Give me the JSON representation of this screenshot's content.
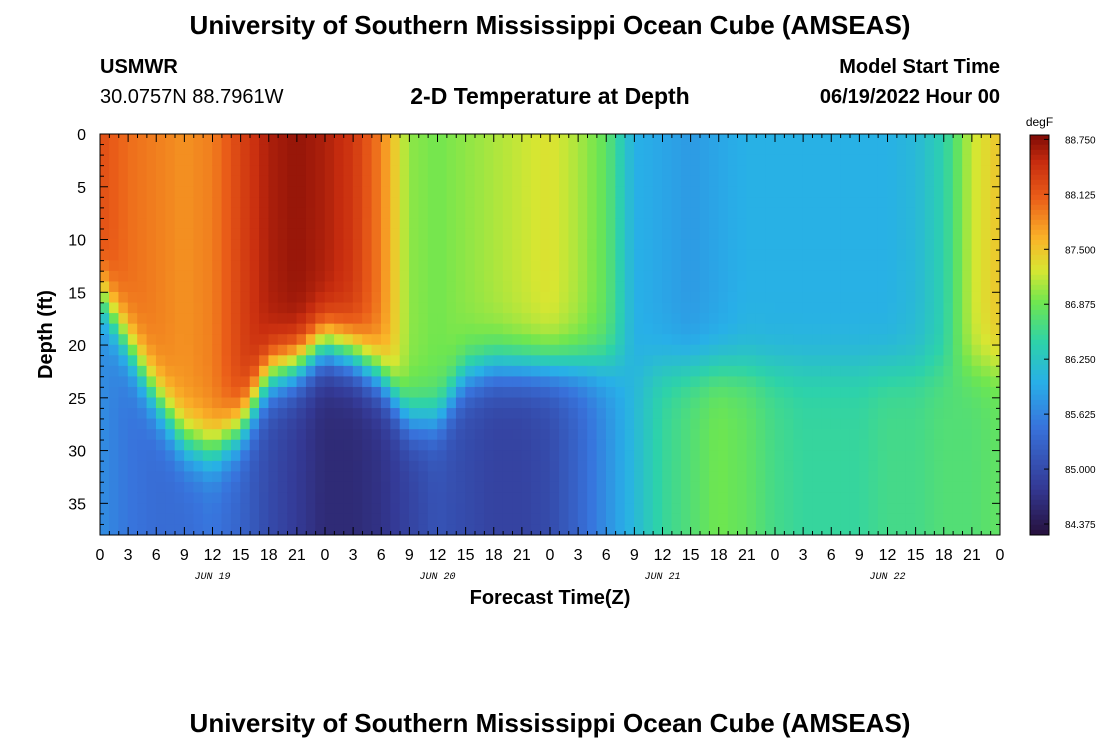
{
  "header": {
    "title": "University of Southern Mississippi Ocean Cube (AMSEAS)",
    "station": "USMWR",
    "coordinates": "30.0757N  88.7961W",
    "subtitle": "2-D Temperature at Depth",
    "model_start_label": "Model Start Time",
    "model_start_value": "06/19/2022 Hour 00"
  },
  "footer": {
    "title": "University of Southern Mississippi Ocean Cube (AMSEAS)"
  },
  "chart_data": {
    "type": "heatmap",
    "title": "2-D Temperature at Depth",
    "xlabel": "Forecast Time(Z)",
    "ylabel": "Depth (ft)",
    "units": "degF",
    "x_hours_range": [
      0,
      96
    ],
    "y_depth_range_ft": [
      0,
      38
    ],
    "x_tick_labels": [
      "0",
      "3",
      "6",
      "9",
      "12",
      "15",
      "18",
      "21",
      "0",
      "3",
      "6",
      "9",
      "12",
      "15",
      "18",
      "21",
      "0",
      "3",
      "6",
      "9",
      "12",
      "15",
      "18",
      "21",
      "0",
      "3",
      "6",
      "9",
      "12",
      "15",
      "18",
      "21",
      "0"
    ],
    "y_tick_labels": [
      "0",
      "5",
      "10",
      "15",
      "20",
      "25",
      "30",
      "35"
    ],
    "y_tick_values": [
      0,
      5,
      10,
      15,
      20,
      25,
      30,
      35
    ],
    "date_labels": [
      {
        "label": "JUN 19",
        "hour": 12
      },
      {
        "label": "JUN 20",
        "hour": 36
      },
      {
        "label": "JUN 21",
        "hour": 60
      },
      {
        "label": "JUN 22",
        "hour": 84
      }
    ],
    "colorbar": {
      "min": 84.25,
      "max": 88.8,
      "tick_labels": [
        "88.750",
        "88.125",
        "87.500",
        "86.875",
        "86.250",
        "85.625",
        "85.000",
        "84.375"
      ],
      "tick_values": [
        88.75,
        88.125,
        87.5,
        86.875,
        86.25,
        85.625,
        85.0,
        84.375
      ]
    },
    "thermocline_profile": {
      "hours": [
        0,
        3,
        6,
        9,
        12,
        15,
        18,
        21,
        24,
        27,
        30,
        33,
        36,
        39,
        42,
        45,
        48,
        51,
        54,
        57,
        60,
        63,
        66,
        69,
        72,
        75,
        78,
        81,
        84,
        87,
        90,
        93,
        96
      ],
      "interface_depth_ft": [
        15,
        20,
        25,
        29,
        30,
        28,
        23,
        22,
        20,
        21,
        23,
        27,
        27,
        23,
        22,
        22,
        22,
        22,
        22,
        22,
        22,
        22,
        22,
        22,
        22,
        22,
        22,
        22,
        22,
        22,
        22,
        22,
        22
      ]
    },
    "surface_temp_degF": {
      "hours": [
        0,
        3,
        6,
        9,
        12,
        15,
        18,
        21,
        24,
        27,
        30,
        33,
        36,
        39,
        42,
        45,
        48,
        51,
        54,
        57,
        60,
        63,
        66,
        69,
        72,
        75,
        78,
        81,
        84,
        87,
        90,
        93,
        96
      ],
      "values": [
        88.2,
        88.0,
        87.9,
        87.8,
        87.9,
        88.3,
        88.6,
        88.7,
        88.6,
        88.4,
        87.9,
        87.0,
        86.9,
        87.0,
        87.1,
        87.2,
        87.3,
        87.1,
        86.8,
        86.0,
        85.9,
        85.8,
        85.9,
        86.0,
        86.0,
        86.0,
        86.0,
        86.0,
        86.0,
        86.1,
        86.4,
        87.2,
        87.5
      ]
    },
    "deep_temp_degF": {
      "hours": [
        0,
        3,
        6,
        9,
        12,
        15,
        18,
        21,
        24,
        27,
        30,
        33,
        36,
        39,
        42,
        45,
        48,
        51,
        54,
        57,
        60,
        63,
        66,
        69,
        72,
        75,
        78,
        81,
        84,
        87,
        90,
        93,
        96
      ],
      "values": [
        85.7,
        85.5,
        85.4,
        85.4,
        85.5,
        85.3,
        85.0,
        84.8,
        84.6,
        84.6,
        84.7,
        84.9,
        85.1,
        85.0,
        84.9,
        84.9,
        85.0,
        85.3,
        85.7,
        86.1,
        86.5,
        86.7,
        86.9,
        86.8,
        86.6,
        86.5,
        86.5,
        86.5,
        86.6,
        86.6,
        86.7,
        86.7,
        86.8
      ]
    }
  }
}
